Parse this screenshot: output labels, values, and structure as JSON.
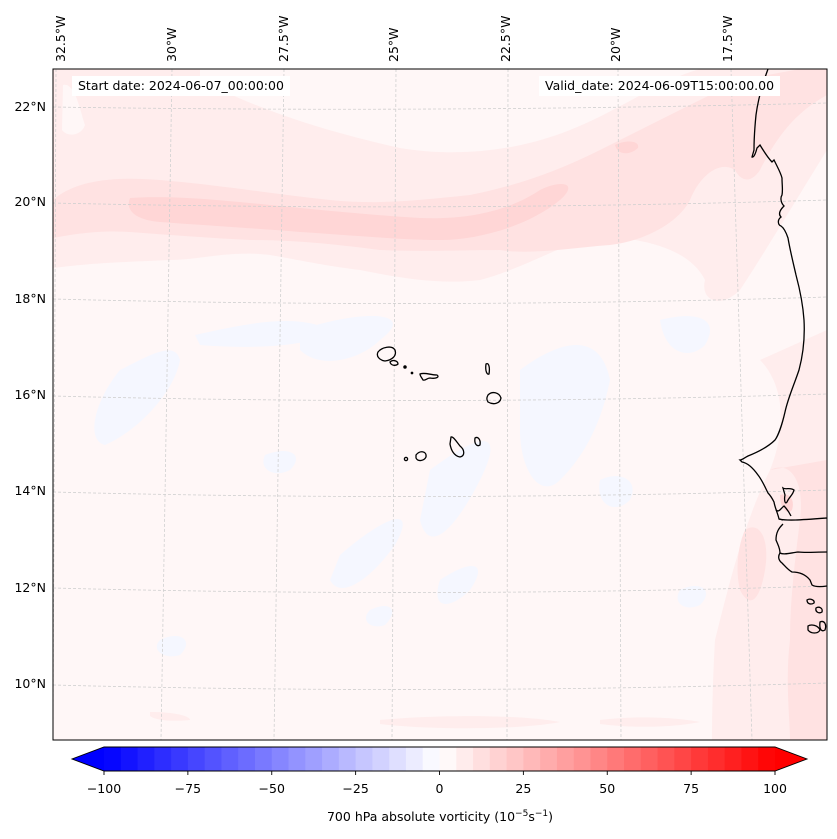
{
  "figure": {
    "start_date": "Start date: 2024-06-07_00:00:00",
    "valid_date": "Valid_date: 2024-06-09T15:00:00.00"
  },
  "map": {
    "variable": "700 hPa absolute vorticity",
    "units_text": "(10",
    "units_exp1": "−5",
    "units_mid": "s",
    "units_exp2": "−1",
    "units_close": ")",
    "extent": {
      "lon_min": -32.7,
      "lon_max": -14.8,
      "lat_min": 8.9,
      "lat_max": 22.8
    },
    "lon_ticks": [
      "32.5°W",
      "30°W",
      "27.5°W",
      "25°W",
      "22.5°W",
      "20°W",
      "17.5°W"
    ],
    "lat_ticks": [
      "22°N",
      "20°N",
      "18°N",
      "16°N",
      "14°N",
      "12°N",
      "10°N"
    ],
    "features": [
      "Cape Verde islands",
      "West African coastline (Mauritania, Senegal, Gambia, Guinea-Bissau)"
    ],
    "notable_fields": [
      {
        "description": "Positive vorticity band along ~19.5-20.5°N from 32°W to 19°W, peak ~15-20",
        "sign": "positive"
      },
      {
        "description": "Weak positive vorticity along northeast band to ~22°N near 17.5°W",
        "sign": "positive"
      },
      {
        "description": "Weak positive vorticity along the West African coast south of 15°N",
        "sign": "positive"
      },
      {
        "description": "Scattered weak negative vorticity patches around Cape Verde and 14-17°N",
        "sign": "negative"
      }
    ]
  },
  "colorbar": {
    "colormap": "bwr",
    "min": -100,
    "max": 100,
    "step": 5,
    "extend": "both",
    "ticks": [
      "−100",
      "−75",
      "−50",
      "−25",
      "0",
      "25",
      "50",
      "75",
      "100"
    ],
    "tick_values": [
      -100,
      -75,
      -50,
      -25,
      0,
      25,
      50,
      75,
      100
    ],
    "colors": {
      "low": "#0000ff",
      "mid": "#ffffff",
      "high": "#ff0000"
    }
  }
}
